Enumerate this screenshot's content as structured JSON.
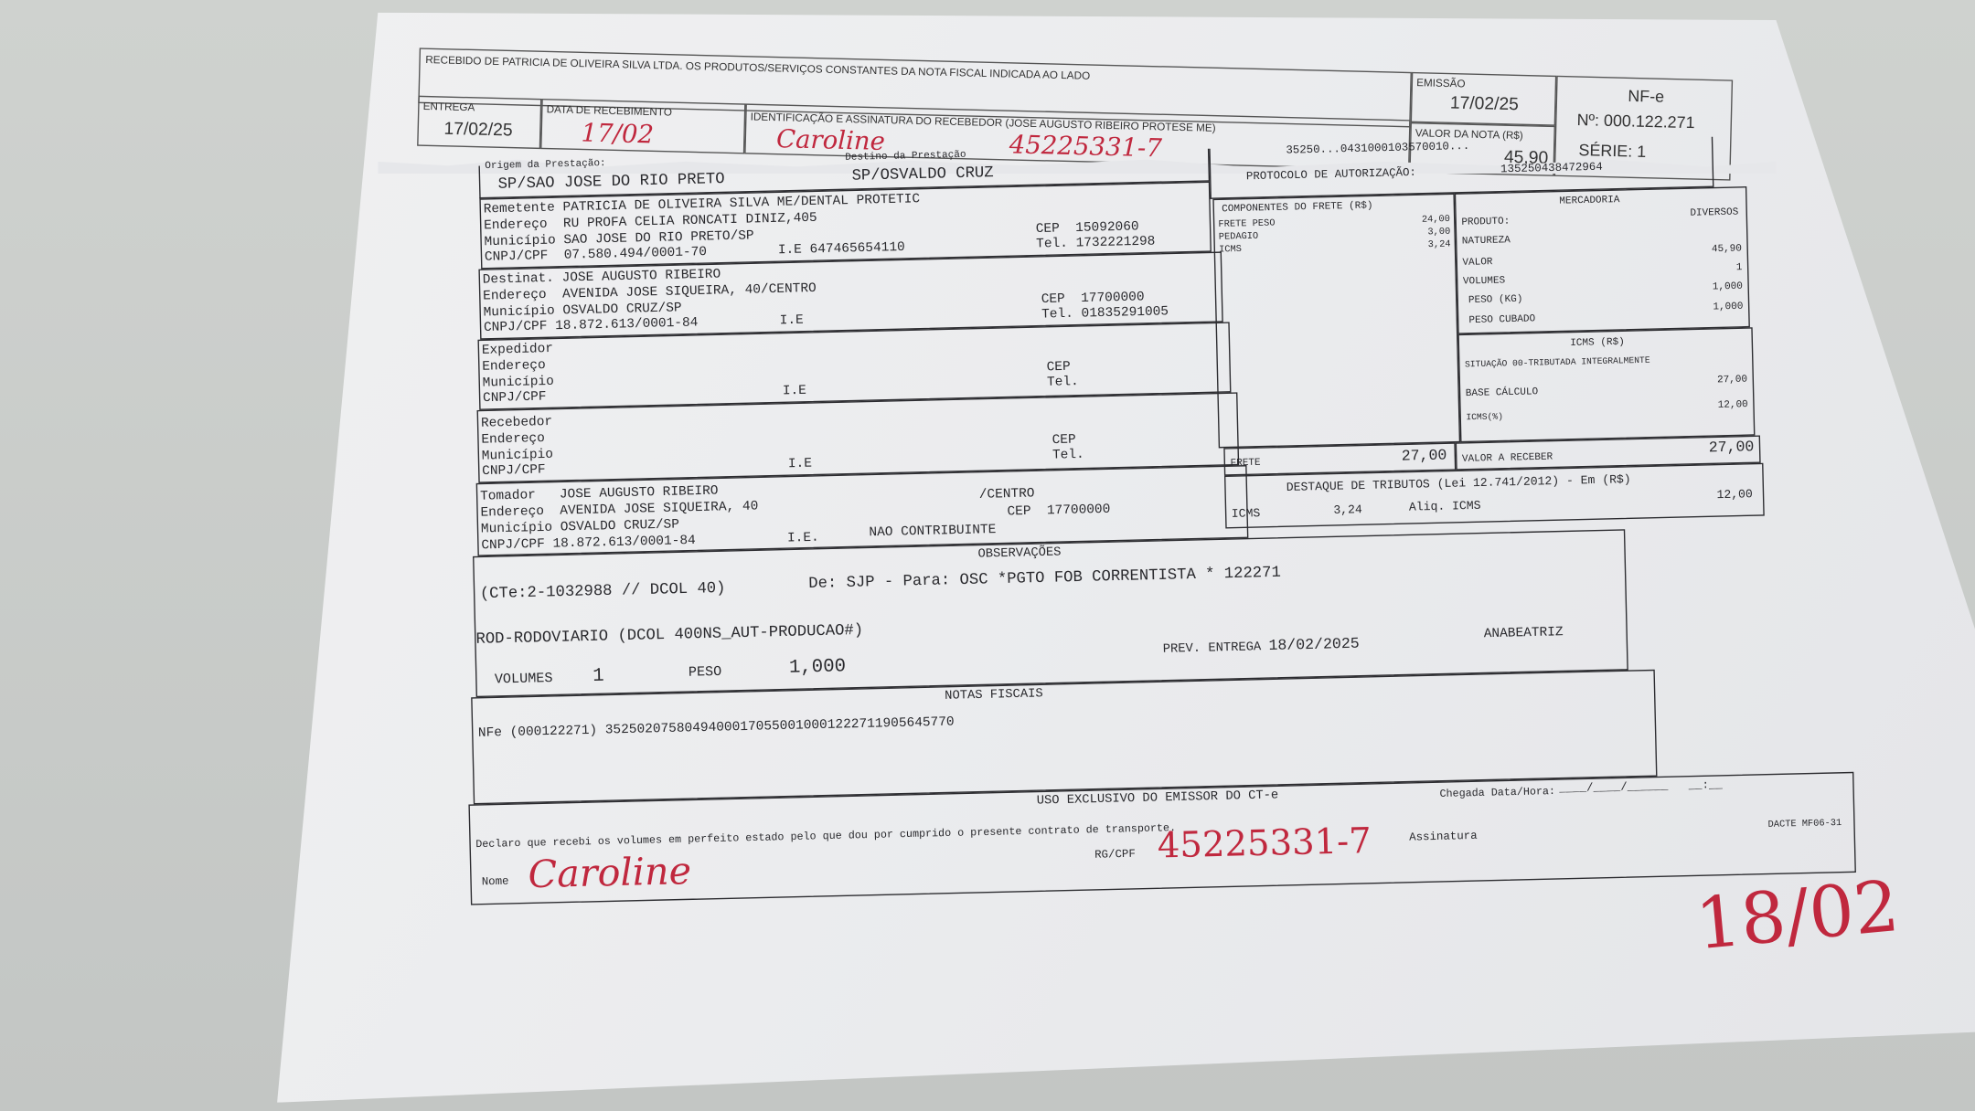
{
  "stub": {
    "receipt_text": "RECEBIDO DE PATRICIA DE OLIVEIRA SILVA LTDA. OS PRODUTOS/SERVIÇOS CONSTANTES DA NOTA FISCAL INDICADA AO LADO",
    "entrega_label": "ENTREGA",
    "entrega_value": "17/02/25",
    "data_recebimento_label": "DATA DE RECEBIMENTO",
    "data_recebimento_handwritten": "17/02",
    "identificacao_label": "IDENTIFICAÇÃO E ASSINATURA DO RECEBEDOR (JOSE AUGUSTO RIBEIRO PROTESE ME)",
    "signature_handwritten": "Caroline",
    "rg_handwritten": "45225331-7",
    "emissao_label": "EMISSÃO",
    "emissao_value": "17/02/25",
    "valor_label": "VALOR DA NOTA (R$)",
    "valor_value": "45,90",
    "nfe_title": "NF-e",
    "nfe_number": "Nº: 000.122.271",
    "serie": "SÉRIE: 1"
  },
  "form": {
    "origem_label": "Origem da Prestação:",
    "destino_label": "Destino da Prestação",
    "origem": "SP/SAO JOSE DO RIO PRETO",
    "destino": "SP/OSVALDO CRUZ",
    "chave_partial": "35250...0431000103570010...",
    "protocolo_label": "PROTOCOLO DE AUTORIZAÇÃO:",
    "protocolo": "135250438472964",
    "remetente": {
      "label": "Remetente",
      "nome": "PATRICIA DE OLIVEIRA SILVA ME/DENTAL PROTETIC",
      "endereco_label": "Endereço",
      "endereco": "RU PROFA CELIA RONCATI DINIZ,405",
      "municipio_label": "Município",
      "municipio": "SAO JOSE DO RIO PRETO/SP",
      "cnpj_label": "CNPJ/CPF",
      "cnpj": "07.580.494/0001-70",
      "ie_label": "I.E",
      "ie": "647465654110",
      "cep_label": "CEP",
      "cep": "15092060",
      "tel_label": "Tel.",
      "tel": "1732221298"
    },
    "destinatario": {
      "label": "Destinat.",
      "nome": "JOSE AUGUSTO RIBEIRO",
      "endereco_label": "Endereço",
      "endereco": "AVENIDA JOSE SIQUEIRA, 40/CENTRO",
      "municipio_label": "Município",
      "municipio": "OSVALDO CRUZ/SP",
      "cnpj_label": "CNPJ/CPF",
      "cnpj": "18.872.613/0001-84",
      "ie_label": "I.E",
      "cep_label": "CEP",
      "cep": "17700000",
      "tel_label": "Tel.",
      "tel": "01835291005"
    },
    "expedidor": {
      "label": "Expedidor",
      "endereco_label": "Endereço",
      "municipio_label": "Município",
      "cnpj_label": "CNPJ/CPF",
      "ie_label": "I.E",
      "cep_label": "CEP",
      "tel_label": "Tel."
    },
    "recebedor": {
      "label": "Recebedor",
      "endereco_label": "Endereço",
      "municipio_label": "Município",
      "cnpj_label": "CNPJ/CPF",
      "ie_label": "I.E",
      "cep_label": "CEP",
      "tel_label": "Tel."
    },
    "tomador": {
      "label": "Tomador",
      "nome": "JOSE AUGUSTO RIBEIRO",
      "endereco_label": "Endereço",
      "endereco": "AVENIDA JOSE SIQUEIRA, 40",
      "bairro": "/CENTRO",
      "municipio_label": "Município",
      "municipio": "OSVALDO CRUZ/SP",
      "cep_label": "CEP",
      "cep": "17700000",
      "cnpj_label": "CNPJ/CPF",
      "cnpj": "18.872.613/0001-84",
      "ie_label": "I.E.",
      "ie": "NAO CONTRIBUINTE"
    },
    "componentes": {
      "title": "COMPONENTES DO FRETE (R$)",
      "items": [
        {
          "label": "FRETE PESO",
          "value": "24,00"
        },
        {
          "label": "PEDAGIO",
          "value": "3,00"
        },
        {
          "label": "ICMS",
          "value": "3,24"
        }
      ]
    },
    "mercadoria": {
      "title": "MERCADORIA",
      "produto_label": "PRODUTO:",
      "produto": "DIVERSOS",
      "natureza_label": "NATUREZA",
      "valor_label": "VALOR",
      "valor": "45,90",
      "volumes_label": "VOLUMES",
      "volumes": "1",
      "peso_label": "PESO (KG)",
      "peso": "1,000",
      "peso_cubado_label": "PESO CUBADO",
      "peso_cubado": "1,000"
    },
    "icms": {
      "title": "ICMS (R$)",
      "situacao": "SITUAÇÃO 00-TRIBUTADA INTEGRALMENTE",
      "base_label": "BASE CÁLCULO",
      "base": "27,00",
      "aliq_label": "ICMS(%)",
      "aliq": "12,00"
    },
    "frete_label": "FRETE",
    "frete": "27,00",
    "valor_receber_label": "VALOR A RECEBER",
    "valor_receber": "27,00",
    "destaque": {
      "title": "DESTAQUE DE TRIBUTOS (Lei 12.741/2012) - Em (R$)",
      "icms_label": "ICMS",
      "icms": "3,24",
      "aliq_label": "Aliq. ICMS",
      "aliq": "12,00"
    },
    "observacoes": {
      "title": "OBSERVAÇÕES",
      "line1": "(CTe:2-1032988 // DCOL 40)",
      "line1b": "De: SJP - Para: OSC *PGTO FOB CORRENTISTA * 122271",
      "line2": "ROD-RODOVIARIO (DCOL 400NS_AUT-PRODUCAO#)",
      "volumes_label": "VOLUMES",
      "volumes": "1",
      "peso_label": "PESO",
      "peso": "1,000",
      "prev_entrega_label": "PREV. ENTREGA",
      "prev_entrega": "18/02/2025",
      "operador": "ANABEATRIZ"
    },
    "notas": {
      "title": "NOTAS FISCAIS",
      "line": "NFe (000122271) 35250207580494000170550010001222711905645770"
    },
    "uso": {
      "title": "USO EXCLUSIVO DO EMISSOR DO CT-e",
      "chegada_label": "Chegada Data/Hora:",
      "declaro": "Declaro que recebi os volumes em perfeito estado pelo que dou por cumprido o presente contrato de transporte.",
      "nome_label": "Nome",
      "nome_handwritten": "Caroline",
      "rg_label": "RG/CPF",
      "rg_handwritten": "45225331-7",
      "assinatura_label": "Assinatura",
      "dacte": "DACTE MF06-31",
      "date_handwritten": "18/02"
    }
  },
  "colors": {
    "ink": "#2a2a2e",
    "handwriting": "#c0283e",
    "paper": "#ececee",
    "background": "#c6c9c7"
  }
}
